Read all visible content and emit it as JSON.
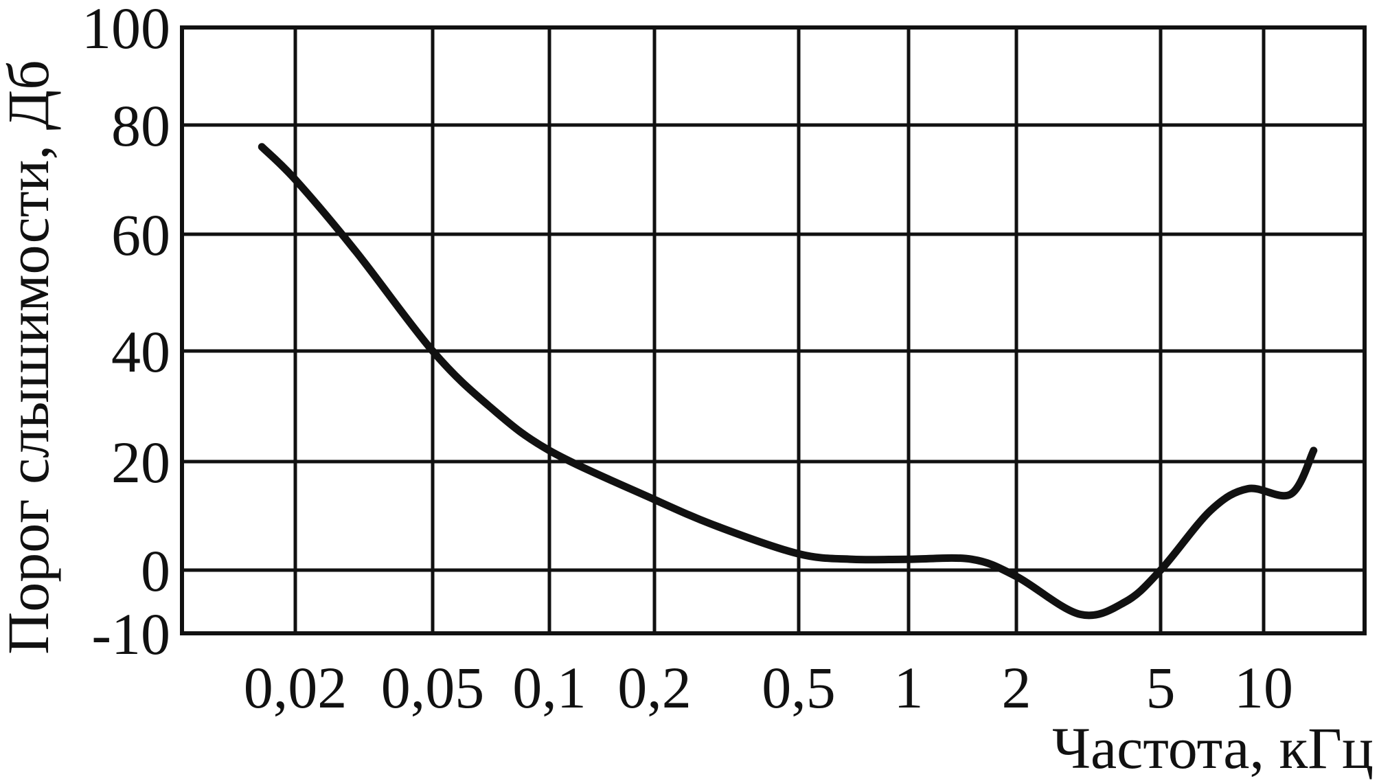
{
  "chart_data": {
    "type": "line",
    "title": "",
    "xlabel": "Частота, кГц",
    "ylabel": "Порог слышимости, Дб",
    "x_scale": "log",
    "x_unit": "kHz",
    "x_tick_labels": [
      "0,02",
      "0,05",
      "0,1",
      "0,2",
      "0,5",
      "1",
      "2",
      "5",
      "10"
    ],
    "y_ticks": [
      -10,
      0,
      20,
      40,
      60,
      80,
      100
    ],
    "y_tick_labels": [
      "-10",
      "0",
      "20",
      "40",
      "60",
      "80",
      "100"
    ],
    "ylim": [
      -10,
      100
    ],
    "xlim_label_indices": [
      0,
      8
    ],
    "grid": true,
    "legend": "none",
    "colors": {
      "line": "#111111",
      "grid": "#111111",
      "background": "#ffffff"
    },
    "series": [
      {
        "points": [
          {
            "x": 0.016,
            "y": 76
          },
          {
            "x": 0.02,
            "y": 70
          },
          {
            "x": 0.03,
            "y": 57
          },
          {
            "x": 0.05,
            "y": 40
          },
          {
            "x": 0.07,
            "y": 30
          },
          {
            "x": 0.1,
            "y": 22
          },
          {
            "x": 0.2,
            "y": 13
          },
          {
            "x": 0.3,
            "y": 8
          },
          {
            "x": 0.5,
            "y": 3
          },
          {
            "x": 0.7,
            "y": 2
          },
          {
            "x": 1,
            "y": 2
          },
          {
            "x": 1.5,
            "y": 2
          },
          {
            "x": 2,
            "y": -1
          },
          {
            "x": 3,
            "y": -7
          },
          {
            "x": 4,
            "y": -5
          },
          {
            "x": 5,
            "y": 0
          },
          {
            "x": 7,
            "y": 11
          },
          {
            "x": 9,
            "y": 15
          },
          {
            "x": 12,
            "y": 14
          },
          {
            "x": 14,
            "y": 22
          }
        ]
      }
    ]
  }
}
